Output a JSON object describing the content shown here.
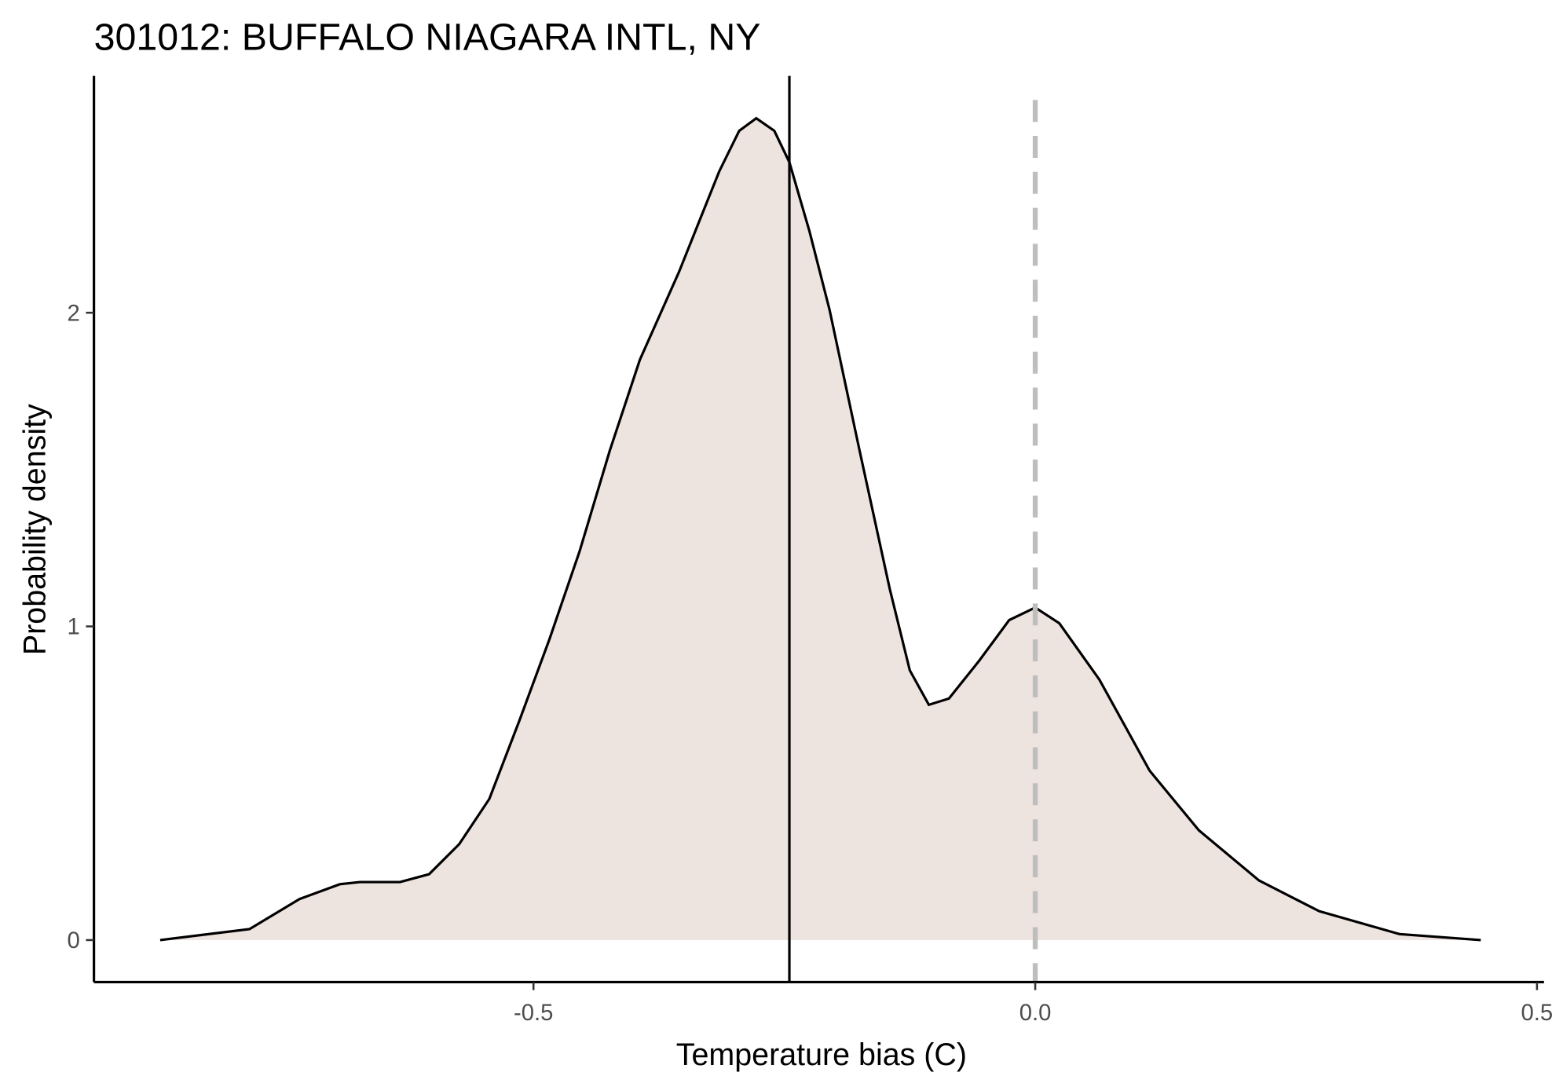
{
  "chart_data": {
    "type": "density",
    "title": "301012: BUFFALO NIAGARA INTL, NY",
    "x_label": "Temperature bias (C)",
    "y_label": "Probability density",
    "x": [
      -0.872,
      -0.783,
      -0.733,
      -0.693,
      -0.673,
      -0.633,
      -0.604,
      -0.574,
      -0.544,
      -0.514,
      -0.484,
      -0.454,
      -0.424,
      -0.394,
      -0.355,
      -0.315,
      -0.295,
      -0.278,
      -0.26,
      -0.245,
      -0.225,
      -0.205,
      -0.175,
      -0.145,
      -0.125,
      -0.106,
      -0.086,
      -0.056,
      -0.026,
      0.0,
      0.024,
      0.064,
      0.114,
      0.163,
      0.223,
      0.283,
      0.363,
      0.444
    ],
    "values": [
      0,
      0.035,
      0.131,
      0.178,
      0.185,
      0.185,
      0.21,
      0.306,
      0.45,
      0.7,
      0.96,
      1.24,
      1.56,
      1.85,
      2.13,
      2.45,
      2.58,
      2.62,
      2.58,
      2.48,
      2.26,
      2.01,
      1.56,
      1.12,
      0.86,
      0.75,
      0.77,
      0.89,
      1.02,
      1.06,
      1.01,
      0.83,
      0.54,
      0.35,
      0.19,
      0.092,
      0.019,
      0
    ],
    "color": "#000000",
    "fill": "#ede3df",
    "mean_line": -0.245,
    "mean_line_color": "#000000",
    "reference_line": 0,
    "reference_line_color": "#bebebe",
    "xlim": [
      -0.938,
      0.507
    ],
    "ylim": [
      -0.134,
      2.755
    ],
    "xticks": [
      -0.5,
      {
        "value": 0,
        "label": "0.0"
      },
      0.5
    ],
    "yticks": [
      0,
      1,
      2
    ],
    "grid": false
  }
}
